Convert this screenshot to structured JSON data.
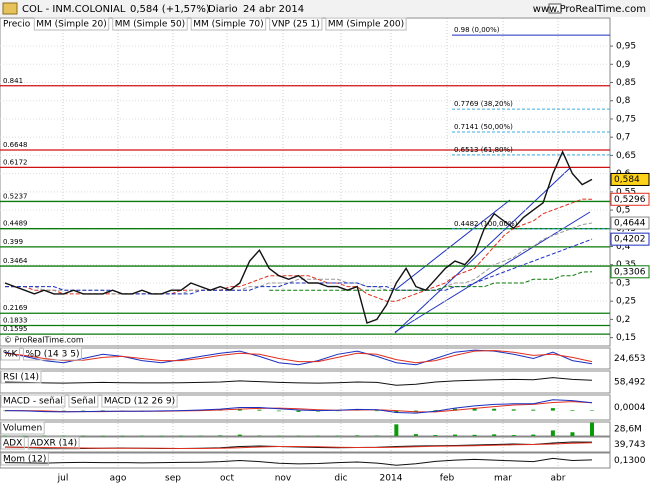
{
  "header": {
    "symbol": "COL - INM.COLONIAL",
    "quote": "0,584 (+1,57%)",
    "period": "Diario",
    "date": "24 abr 2014",
    "site": "www.ProRealTime.com",
    "watermark": "© ProRealTime.com"
  },
  "chart_data": [
    {
      "type": "line",
      "x_labels": [
        "jul",
        "ago",
        "sep",
        "oct",
        "nov",
        "dic",
        "2014",
        "feb",
        "mar",
        "abr"
      ],
      "legend_title": "Precio",
      "ylim": [
        0.127,
        1.027
      ],
      "grid": true,
      "yticks": [
        {
          "value": 0.95,
          "label": "0,95"
        },
        {
          "value": 0.9,
          "label": "0,9"
        },
        {
          "value": 0.85,
          "label": "0,85"
        },
        {
          "value": 0.8,
          "label": "0,8"
        },
        {
          "value": 0.75,
          "label": "0,75"
        },
        {
          "value": 0.7,
          "label": "0,7"
        },
        {
          "value": 0.65,
          "label": "0,65"
        },
        {
          "value": 0.6,
          "label": "0,6"
        },
        {
          "value": 0.55,
          "label": "0,55"
        },
        {
          "value": 0.5,
          "label": "0,5"
        },
        {
          "value": 0.45,
          "label": "0,45"
        },
        {
          "value": 0.4,
          "label": "0,4"
        },
        {
          "value": 0.35,
          "label": "0,35"
        },
        {
          "value": 0.3,
          "label": "0,3"
        },
        {
          "value": 0.25,
          "label": "0,25"
        },
        {
          "value": 0.2,
          "label": "0,2"
        },
        {
          "value": 0.15,
          "label": "0,15"
        }
      ],
      "series": [
        {
          "name": "MM (Simple 20)",
          "color": "#e0301e",
          "values": [
            0.29,
            0.29,
            0.29,
            0.28,
            0.28,
            0.28,
            0.27,
            0.27,
            0.27,
            0.27,
            0.27,
            0.27,
            0.27,
            0.27,
            0.27,
            0.27,
            0.27,
            0.27,
            0.28,
            0.28,
            0.28,
            0.28,
            0.28,
            0.29,
            0.29,
            0.3,
            0.31,
            0.32,
            0.32,
            0.32,
            0.32,
            0.32,
            0.31,
            0.3,
            0.3,
            0.29,
            0.29,
            0.27,
            0.26,
            0.25,
            0.25,
            0.26,
            0.27,
            0.28,
            0.29,
            0.3,
            0.32,
            0.33,
            0.34,
            0.37,
            0.4,
            0.43,
            0.45,
            0.46,
            0.47,
            0.49,
            0.5,
            0.51,
            0.52,
            0.53,
            0.5296
          ]
        },
        {
          "name": "MM (Simple 50)",
          "color": "#999999",
          "values": [
            0.29,
            0.29,
            0.29,
            0.29,
            0.28,
            0.28,
            0.28,
            0.28,
            0.28,
            0.28,
            0.28,
            0.27,
            0.27,
            0.27,
            0.27,
            0.27,
            0.27,
            0.27,
            0.27,
            0.28,
            0.28,
            0.28,
            0.28,
            0.28,
            0.28,
            0.29,
            0.29,
            0.3,
            0.3,
            0.3,
            0.31,
            0.31,
            0.31,
            0.31,
            0.31,
            0.3,
            0.3,
            0.29,
            0.29,
            0.28,
            0.28,
            0.28,
            0.28,
            0.28,
            0.28,
            0.29,
            0.3,
            0.3,
            0.31,
            0.33,
            0.35,
            0.36,
            0.37,
            0.39,
            0.4,
            0.42,
            0.43,
            0.44,
            0.45,
            0.46,
            0.4644
          ]
        },
        {
          "name": "MM (Simple 70)",
          "color": "#1a2fc0",
          "values": [
            0.29,
            0.29,
            0.29,
            0.29,
            0.29,
            0.29,
            0.28,
            0.28,
            0.28,
            0.28,
            0.28,
            0.28,
            0.27,
            0.27,
            0.27,
            0.27,
            0.27,
            0.27,
            0.27,
            0.27,
            0.28,
            0.28,
            0.28,
            0.28,
            0.28,
            0.28,
            0.29,
            0.29,
            0.29,
            0.3,
            0.3,
            0.3,
            0.3,
            0.3,
            0.3,
            0.3,
            0.3,
            0.29,
            0.29,
            0.29,
            0.28,
            0.28,
            0.28,
            0.28,
            0.28,
            0.28,
            0.29,
            0.29,
            0.3,
            0.31,
            0.32,
            0.33,
            0.34,
            0.35,
            0.36,
            0.37,
            0.38,
            0.39,
            0.4,
            0.41,
            0.4202
          ]
        },
        {
          "name": "VNP (25 1)",
          "color": "#c0c8f0",
          "values": []
        },
        {
          "name": "MM (Simple 200)",
          "color": "#0a7a0a",
          "values": [
            null,
            null,
            null,
            null,
            null,
            null,
            null,
            null,
            null,
            null,
            null,
            null,
            null,
            null,
            null,
            null,
            null,
            null,
            null,
            null,
            null,
            null,
            null,
            null,
            null,
            null,
            null,
            0.28,
            0.28,
            0.28,
            0.28,
            0.28,
            0.28,
            0.28,
            0.28,
            0.28,
            0.28,
            0.28,
            0.28,
            0.28,
            0.28,
            0.28,
            0.28,
            0.28,
            0.28,
            0.29,
            0.29,
            0.29,
            0.29,
            0.29,
            0.3,
            0.3,
            0.3,
            0.3,
            0.31,
            0.31,
            0.31,
            0.32,
            0.32,
            0.33,
            0.3306
          ]
        },
        {
          "name": "Precio",
          "color": "#111111",
          "values": [
            0.3,
            0.29,
            0.28,
            0.27,
            0.28,
            0.27,
            0.27,
            0.28,
            0.27,
            0.27,
            0.27,
            0.28,
            0.27,
            0.27,
            0.28,
            0.27,
            0.27,
            0.28,
            0.28,
            0.3,
            0.29,
            0.28,
            0.29,
            0.28,
            0.3,
            0.36,
            0.39,
            0.34,
            0.32,
            0.31,
            0.32,
            0.3,
            0.3,
            0.29,
            0.29,
            0.28,
            0.29,
            0.19,
            0.2,
            0.24,
            0.3,
            0.34,
            0.29,
            0.28,
            0.31,
            0.34,
            0.36,
            0.35,
            0.38,
            0.45,
            0.49,
            0.47,
            0.45,
            0.48,
            0.5,
            0.52,
            0.6,
            0.66,
            0.6,
            0.57,
            0.584
          ]
        }
      ],
      "levels": [
        {
          "value": 0.841,
          "color": "#d01010"
        },
        {
          "value": 0.6648,
          "color": "#d01010"
        },
        {
          "value": 0.6172,
          "color": "#d01010"
        },
        {
          "value": 0.5237,
          "color": "#0a7a0a"
        },
        {
          "value": 0.4489,
          "color": "#0a7a0a"
        },
        {
          "value": 0.399,
          "color": "#0a7a0a"
        },
        {
          "value": 0.3464,
          "color": "#0a7a0a"
        },
        {
          "value": 0.2169,
          "color": "#0a7a0a"
        },
        {
          "value": 0.1833,
          "color": "#0a7a0a"
        },
        {
          "value": 0.1595,
          "color": "#0a7a0a"
        }
      ],
      "fib_levels": [
        {
          "value": 0.98,
          "label": "0.98 (0,00%)"
        },
        {
          "value": 0.7769,
          "label": "0.7769 (38,20%)"
        },
        {
          "value": 0.7141,
          "label": "0.7141 (50,00%)"
        },
        {
          "value": 0.6513,
          "label": "0.6513 (61,80%)"
        },
        {
          "value": 0.4482,
          "label": "0.4482 (100,00%)"
        }
      ],
      "last_labels": [
        {
          "value": 0.584,
          "label": "0,584",
          "color": "#000000",
          "bg": "#ffd21a"
        },
        {
          "value": 0.5296,
          "label": "0,5296",
          "color": "#e0301e",
          "bg": "#ffffff"
        },
        {
          "value": 0.4644,
          "label": "0,4644",
          "color": "#888888",
          "bg": "#ffffff"
        },
        {
          "value": 0.4202,
          "label": "0,4202",
          "color": "#1a2fc0",
          "bg": "#ffffff"
        },
        {
          "value": 0.3306,
          "label": "0,3306",
          "color": "#0a7a0a",
          "bg": "#ffffff"
        }
      ]
    },
    {
      "type": "line",
      "ylim": [
        0,
        100
      ],
      "series": [
        {
          "name": "%K",
          "color": "#1a2fc0",
          "values": [
            80,
            60,
            40,
            30,
            50,
            70,
            60,
            40,
            30,
            45,
            60,
            75,
            85,
            60,
            30,
            20,
            40,
            70,
            85,
            60,
            30,
            20,
            50,
            80,
            90,
            85,
            70,
            50,
            80,
            40,
            25
          ]
        },
        {
          "name": "%D (14 3 5)",
          "color": "#e0301e",
          "values": [
            75,
            65,
            50,
            40,
            42,
            55,
            60,
            50,
            40,
            40,
            50,
            65,
            75,
            70,
            50,
            35,
            35,
            55,
            75,
            70,
            45,
            30,
            40,
            65,
            85,
            88,
            80,
            65,
            70,
            55,
            35
          ]
        }
      ],
      "current": {
        "value": 24.653,
        "label": "24,653"
      }
    },
    {
      "type": "line",
      "ylim": [
        0,
        100
      ],
      "series": [
        {
          "name": "RSI (14)",
          "color": "#111111",
          "values": [
            50,
            48,
            46,
            45,
            47,
            48,
            47,
            46,
            46,
            47,
            48,
            50,
            55,
            52,
            48,
            46,
            45,
            47,
            50,
            48,
            35,
            40,
            50,
            55,
            58,
            60,
            62,
            60,
            70,
            62,
            58
          ]
        }
      ],
      "current": {
        "value": 58.492,
        "label": "58,492"
      }
    },
    {
      "type": "line",
      "ylim": [
        -0.03,
        0.05
      ],
      "series": [
        {
          "name": "MACD - señal",
          "color": "#0a9a0a",
          "kind": "bar",
          "values": [
            0,
            0,
            -0.002,
            -0.001,
            0,
            0.001,
            0,
            0,
            0,
            0.001,
            0.002,
            0.004,
            0.006,
            0.003,
            -0.002,
            -0.004,
            -0.003,
            0,
            0.002,
            -0.001,
            -0.006,
            -0.004,
            0.002,
            0.006,
            0.008,
            0.006,
            0.004,
            0.003,
            0.008,
            0.002,
            0.0004
          ]
        },
        {
          "name": "Señal",
          "color": "#e0301e",
          "values": [
            0,
            0,
            -0.001,
            -0.003,
            -0.003,
            -0.003,
            -0.002,
            -0.002,
            -0.002,
            -0.001,
            0,
            0.002,
            0.005,
            0.007,
            0.008,
            0.006,
            0.003,
            0.001,
            0.002,
            0.003,
            0,
            -0.004,
            -0.004,
            0.001,
            0.007,
            0.013,
            0.018,
            0.02,
            0.026,
            0.029,
            0.025
          ]
        },
        {
          "name": "MACD (12 26 9)",
          "color": "#1a2fc0",
          "values": [
            0,
            -0.001,
            -0.003,
            -0.004,
            -0.003,
            -0.002,
            -0.002,
            -0.002,
            -0.001,
            0,
            0.002,
            0.005,
            0.01,
            0.01,
            0.006,
            0.002,
            0,
            0.001,
            0.004,
            0.003,
            -0.006,
            -0.008,
            -0.002,
            0.008,
            0.015,
            0.02,
            0.022,
            0.022,
            0.035,
            0.032,
            0.025
          ]
        }
      ],
      "current": {
        "value": 0.0004,
        "label": "0,0004"
      }
    },
    {
      "type": "line",
      "ylim": [
        0,
        30000000
      ],
      "series": [
        {
          "name": "Volumen",
          "color": "#0a9a0a",
          "kind": "bar",
          "values": [
            800000,
            600000,
            900000,
            500000,
            700000,
            600000,
            500000,
            800000,
            600000,
            700000,
            900000,
            1500000,
            3000000,
            1200000,
            900000,
            800000,
            700000,
            1000000,
            1500000,
            1200000,
            25000000,
            4000000,
            2000000,
            3000000,
            2500000,
            3500000,
            2000000,
            3000000,
            12000000,
            8000000,
            28600000
          ]
        }
      ],
      "current": {
        "value": 28600000,
        "label": "28,6M"
      }
    },
    {
      "type": "line",
      "ylim": [
        0,
        60
      ],
      "series": [
        {
          "name": "ADX",
          "color": "#111111",
          "values": [
            20,
            18,
            16,
            15,
            14,
            15,
            16,
            15,
            14,
            14,
            15,
            17,
            22,
            24,
            22,
            20,
            18,
            17,
            18,
            19,
            22,
            24,
            25,
            26,
            28,
            30,
            32,
            30,
            36,
            40,
            39.7
          ]
        },
        {
          "name": "ADXR (14)",
          "color": "#e0301e",
          "values": [
            19,
            19,
            18,
            17,
            16,
            15,
            15,
            15,
            15,
            14,
            14,
            15,
            17,
            20,
            22,
            22,
            21,
            19,
            18,
            18,
            19,
            21,
            23,
            24,
            25,
            27,
            29,
            30,
            32,
            35,
            37
          ]
        }
      ],
      "current": {
        "value": 39.743,
        "label": "39,743"
      }
    },
    {
      "type": "line",
      "ylim": [
        -0.25,
        0.45
      ],
      "series": [
        {
          "name": "Mom (12)",
          "color": "#111111",
          "values": [
            0,
            -0.01,
            -0.02,
            0,
            0.01,
            0,
            0,
            -0.01,
            0,
            0.01,
            0.02,
            0.05,
            0.1,
            0.05,
            -0.03,
            -0.06,
            -0.04,
            0,
            0.03,
            -0.02,
            -0.12,
            -0.05,
            0.06,
            0.12,
            0.15,
            0.12,
            0.08,
            0.05,
            0.2,
            0.1,
            0.13
          ]
        }
      ],
      "current": {
        "value": 0.13,
        "label": "0,1300"
      }
    }
  ]
}
